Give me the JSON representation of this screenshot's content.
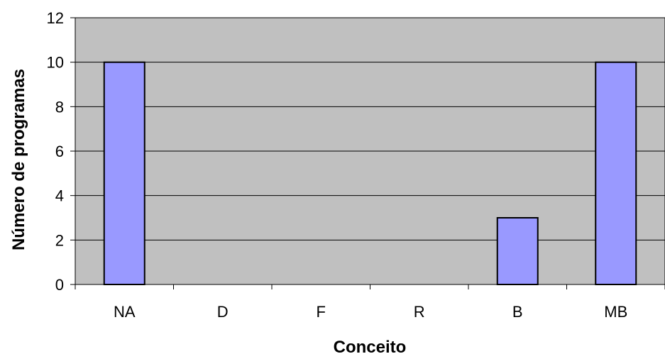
{
  "chart_data": {
    "type": "bar",
    "categories": [
      "NA",
      "D",
      "F",
      "R",
      "B",
      "MB"
    ],
    "values": [
      10,
      0,
      0,
      0,
      3,
      10
    ],
    "xlabel": "Conceito",
    "ylabel": "Número de programas",
    "ylim": [
      0,
      12
    ],
    "yticks": [
      "0",
      "2",
      "4",
      "6",
      "8",
      "10",
      "12"
    ],
    "grid": true,
    "legend": "none",
    "colors": {
      "plot_background": "#c0c0c0",
      "bar_fill": "#9999ff",
      "bar_stroke": "#000000",
      "gridline": "#000000"
    }
  }
}
